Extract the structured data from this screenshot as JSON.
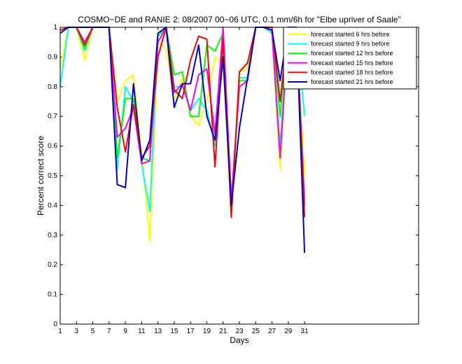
{
  "chart_data": {
    "type": "line",
    "title": "COSMO−DE and RANIE 2: 08/2007 00−06 UTC, 0.1 mm/6h for \"Elbe upriver of Saale\"",
    "xlabel": "Days",
    "ylabel": "Percent correct score",
    "xlim": [
      1,
      45
    ],
    "ylim": [
      0,
      1
    ],
    "x_ticks": [
      1,
      3,
      5,
      7,
      9,
      11,
      13,
      15,
      17,
      19,
      21,
      23,
      25,
      27,
      29,
      31
    ],
    "y_ticks": [
      0,
      0.1,
      0.2,
      0.3,
      0.4,
      0.5,
      0.6,
      0.7,
      0.8,
      0.9,
      1
    ],
    "y_tick_labels": [
      "0",
      "0.1",
      "0.2",
      "0.3",
      "0.4",
      "0.5",
      "0.6",
      "0.7",
      "0.8",
      "0.9",
      "1"
    ],
    "legend_position": "top-right",
    "grid": false,
    "x": [
      1,
      2,
      3,
      4,
      5,
      6,
      7,
      8,
      9,
      10,
      11,
      12,
      13,
      14,
      15,
      16,
      17,
      18,
      19,
      20,
      21,
      22,
      23,
      24,
      25,
      26,
      27,
      28,
      29,
      30,
      31
    ],
    "series": [
      {
        "name": "forecast started 6 hrs before",
        "color": "#ffff00",
        "values": [
          0.86,
          1,
          1,
          0.89,
          1,
          1,
          1,
          0.75,
          0.82,
          0.84,
          0.58,
          0.28,
          0.95,
          0.93,
          0.75,
          0.83,
          0.7,
          0.67,
          0.75,
          0.9,
          0.88,
          0.36,
          0.85,
          0.86,
          1,
          1,
          0.98,
          0.52,
          1,
          0.98,
          0.5
        ]
      },
      {
        "name": "forecast started 9 hrs before",
        "color": "#00ffff",
        "values": [
          0.8,
          1,
          1,
          0.92,
          1,
          1,
          1,
          0.52,
          0.8,
          0.75,
          0.54,
          0.38,
          0.98,
          1,
          0.8,
          0.8,
          0.72,
          0.76,
          0.72,
          0.6,
          0.9,
          0.4,
          0.83,
          0.83,
          1,
          1,
          0.98,
          0.6,
          1,
          0.99,
          0.7
        ]
      },
      {
        "name": "forecast started 12 hrs before",
        "color": "#00ff00",
        "values": [
          0.99,
          1,
          1,
          0.93,
          1,
          1,
          1,
          0.56,
          0.76,
          0.76,
          0.56,
          0.55,
          0.97,
          1,
          0.84,
          0.85,
          0.7,
          0.7,
          0.94,
          0.92,
          0.98,
          0.38,
          0.82,
          0.82,
          1,
          1,
          0.99,
          0.7,
          1,
          1,
          0.42
        ]
      },
      {
        "name": "forecast started 15 hrs before",
        "color": "#ff00ff",
        "values": [
          0.99,
          1,
          1,
          0.95,
          1,
          1,
          1,
          0.63,
          0.66,
          0.73,
          0.54,
          0.55,
          0.95,
          1,
          0.78,
          0.81,
          0.72,
          0.84,
          0.86,
          0.64,
          1,
          0.42,
          0.8,
          0.82,
          1,
          1,
          0.99,
          0.56,
          1,
          0.99,
          0.4
        ]
      },
      {
        "name": "forecast started 18 hrs before",
        "color": "#ff0000",
        "values": [
          0.99,
          1,
          1,
          0.94,
          1,
          1,
          1,
          0.73,
          0.58,
          0.74,
          0.56,
          0.6,
          0.9,
          1,
          0.79,
          0.76,
          0.89,
          0.97,
          0.96,
          0.53,
          0.96,
          0.36,
          0.85,
          0.88,
          1,
          1,
          1,
          0.75,
          1,
          0.99,
          0.36
        ]
      },
      {
        "name": "forecast started 21 hrs before",
        "color": "#0000cc",
        "values": [
          0.98,
          1,
          1,
          1,
          1,
          1,
          1,
          0.47,
          0.46,
          0.81,
          0.55,
          0.62,
          0.98,
          1,
          0.73,
          0.81,
          0.81,
          0.94,
          0.7,
          0.62,
          0.9,
          0.4,
          0.66,
          0.83,
          1,
          1,
          0.99,
          0.82,
          1,
          1,
          0.24
        ]
      }
    ]
  }
}
